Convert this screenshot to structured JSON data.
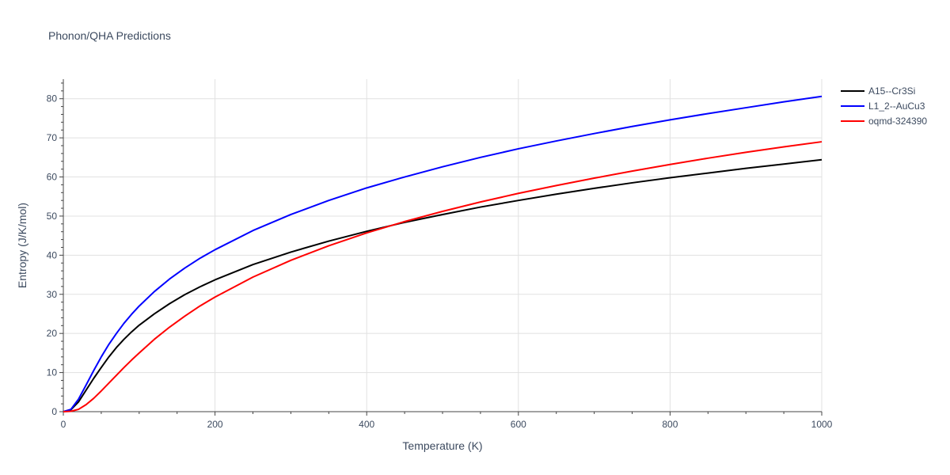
{
  "chart_data": {
    "type": "line",
    "title": "Phonon/QHA Predictions",
    "xlabel": "Temperature (K)",
    "ylabel": "Entropy (J/K/mol)",
    "xlim": [
      0,
      1000
    ],
    "ylim": [
      0,
      85
    ],
    "x_ticks": [
      0,
      200,
      400,
      600,
      800,
      1000
    ],
    "y_ticks": [
      0,
      10,
      20,
      30,
      40,
      50,
      60,
      70,
      80
    ],
    "grid": true,
    "legend_position": "top-right",
    "series": [
      {
        "name": "A15--Cr3Si",
        "color": "#000000",
        "points": [
          [
            0,
            0
          ],
          [
            10,
            0.5
          ],
          [
            20,
            2.5
          ],
          [
            30,
            5.5
          ],
          [
            40,
            8.5
          ],
          [
            50,
            11.3
          ],
          [
            60,
            14
          ],
          [
            70,
            16.4
          ],
          [
            80,
            18.5
          ],
          [
            90,
            20.4
          ],
          [
            100,
            22.1
          ],
          [
            120,
            25
          ],
          [
            140,
            27.6
          ],
          [
            160,
            29.9
          ],
          [
            180,
            31.9
          ],
          [
            200,
            33.7
          ],
          [
            250,
            37.6
          ],
          [
            300,
            40.8
          ],
          [
            350,
            43.6
          ],
          [
            400,
            46.1
          ],
          [
            450,
            48.4
          ],
          [
            500,
            50.4
          ],
          [
            550,
            52.3
          ],
          [
            600,
            54
          ],
          [
            650,
            55.6
          ],
          [
            700,
            57.1
          ],
          [
            750,
            58.5
          ],
          [
            800,
            59.8
          ],
          [
            850,
            61
          ],
          [
            900,
            62.2
          ],
          [
            950,
            63.3
          ],
          [
            1000,
            64.4
          ]
        ]
      },
      {
        "name": "L1_2--AuCu3",
        "color": "#0000ff",
        "points": [
          [
            0,
            0
          ],
          [
            10,
            0.6
          ],
          [
            20,
            3.2
          ],
          [
            30,
            6.8
          ],
          [
            40,
            10.5
          ],
          [
            50,
            14
          ],
          [
            60,
            17.2
          ],
          [
            70,
            20
          ],
          [
            80,
            22.6
          ],
          [
            90,
            24.9
          ],
          [
            100,
            27
          ],
          [
            120,
            30.7
          ],
          [
            140,
            33.9
          ],
          [
            160,
            36.7
          ],
          [
            180,
            39.2
          ],
          [
            200,
            41.4
          ],
          [
            250,
            46.3
          ],
          [
            300,
            50.4
          ],
          [
            350,
            54
          ],
          [
            400,
            57.2
          ],
          [
            450,
            60
          ],
          [
            500,
            62.6
          ],
          [
            550,
            65
          ],
          [
            600,
            67.2
          ],
          [
            650,
            69.2
          ],
          [
            700,
            71.1
          ],
          [
            750,
            72.9
          ],
          [
            800,
            74.6
          ],
          [
            850,
            76.2
          ],
          [
            900,
            77.7
          ],
          [
            950,
            79.2
          ],
          [
            1000,
            80.6
          ]
        ]
      },
      {
        "name": "oqmd-324390",
        "color": "#ff0000",
        "points": [
          [
            0,
            0
          ],
          [
            10,
            0.1
          ],
          [
            20,
            0.6
          ],
          [
            30,
            1.8
          ],
          [
            40,
            3.4
          ],
          [
            50,
            5.3
          ],
          [
            60,
            7.3
          ],
          [
            70,
            9.3
          ],
          [
            80,
            11.3
          ],
          [
            90,
            13.2
          ],
          [
            100,
            15
          ],
          [
            120,
            18.5
          ],
          [
            140,
            21.6
          ],
          [
            160,
            24.4
          ],
          [
            180,
            27
          ],
          [
            200,
            29.3
          ],
          [
            250,
            34.4
          ],
          [
            300,
            38.7
          ],
          [
            350,
            42.4
          ],
          [
            400,
            45.7
          ],
          [
            450,
            48.6
          ],
          [
            500,
            51.2
          ],
          [
            550,
            53.6
          ],
          [
            600,
            55.8
          ],
          [
            650,
            57.8
          ],
          [
            700,
            59.7
          ],
          [
            750,
            61.5
          ],
          [
            800,
            63.2
          ],
          [
            850,
            64.8
          ],
          [
            900,
            66.3
          ],
          [
            950,
            67.7
          ],
          [
            1000,
            69
          ]
        ]
      }
    ]
  }
}
